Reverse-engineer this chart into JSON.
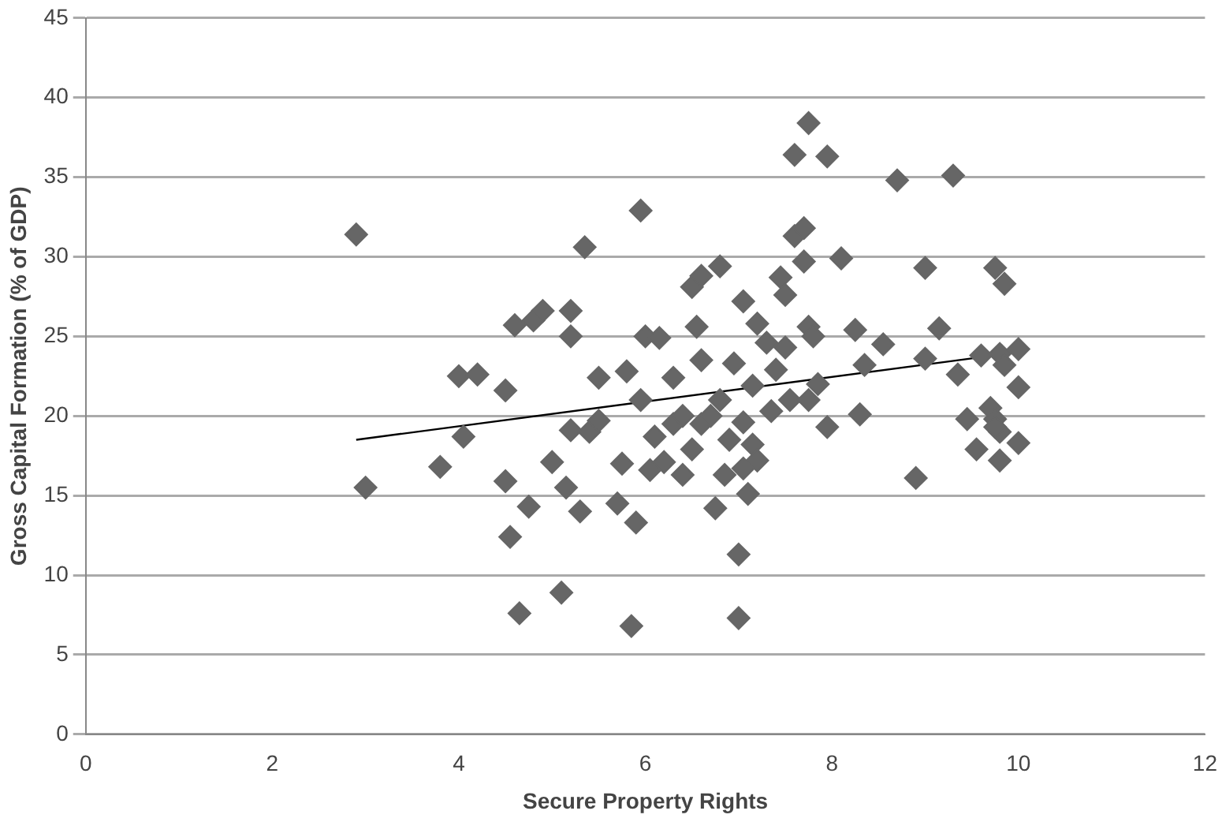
{
  "chart_data": {
    "type": "scatter",
    "xlabel": "Secure Property Rights",
    "ylabel": "Gross Capital Formation (% of GDP)",
    "xlim": [
      0,
      12
    ],
    "xticks": [
      0,
      2,
      4,
      6,
      8,
      10,
      12
    ],
    "ylim": [
      0,
      45
    ],
    "yticks": [
      0,
      5,
      10,
      15,
      20,
      25,
      30,
      35,
      40,
      45
    ],
    "grid": "y",
    "marker": "diamond",
    "series": [
      {
        "color": "#666666",
        "x": [
          2.9,
          3.0,
          3.8,
          4.0,
          4.05,
          4.2,
          4.5,
          4.5,
          4.55,
          4.6,
          4.65,
          4.75,
          4.8,
          4.9,
          5.0,
          5.1,
          5.15,
          5.2,
          5.2,
          5.2,
          5.3,
          5.35,
          5.4,
          5.5,
          5.5,
          5.7,
          5.75,
          5.8,
          5.85,
          5.9,
          5.95,
          5.95,
          6.0,
          6.05,
          6.1,
          6.15,
          6.2,
          6.3,
          6.3,
          6.4,
          6.4,
          6.5,
          6.5,
          6.55,
          6.6,
          6.6,
          6.6,
          6.7,
          6.75,
          6.8,
          6.8,
          6.85,
          6.9,
          6.95,
          7.0,
          7.0,
          7.05,
          7.05,
          7.05,
          7.1,
          7.15,
          7.15,
          7.2,
          7.2,
          7.3,
          7.35,
          7.4,
          7.45,
          7.5,
          7.5,
          7.55,
          7.6,
          7.6,
          7.7,
          7.7,
          7.75,
          7.75,
          7.75,
          7.8,
          7.85,
          7.95,
          7.95,
          8.1,
          8.25,
          8.3,
          8.35,
          8.55,
          8.7,
          8.9,
          9.0,
          9.0,
          9.15,
          9.3,
          9.35,
          9.45,
          9.55,
          9.6,
          9.7,
          9.75,
          9.8,
          9.8,
          9.8,
          9.85,
          9.85,
          10.0,
          10.0,
          10.0,
          9.75,
          9.75
        ],
        "values": [
          31.4,
          15.5,
          16.8,
          22.5,
          18.7,
          22.6,
          21.6,
          15.9,
          12.4,
          25.7,
          7.6,
          14.3,
          26.0,
          26.6,
          17.1,
          8.9,
          15.5,
          26.6,
          25.0,
          19.1,
          14.0,
          30.6,
          19.0,
          22.4,
          19.7,
          14.5,
          17.0,
          22.8,
          6.8,
          13.3,
          32.9,
          21.0,
          25.0,
          16.6,
          18.7,
          24.9,
          17.1,
          22.4,
          19.5,
          20.0,
          16.3,
          17.9,
          28.1,
          25.6,
          28.8,
          19.5,
          23.5,
          20.0,
          14.2,
          29.4,
          21.0,
          16.3,
          18.5,
          23.3,
          11.3,
          7.3,
          27.2,
          19.6,
          16.7,
          15.1,
          21.9,
          18.2,
          25.8,
          17.2,
          24.6,
          20.3,
          22.9,
          28.7,
          27.6,
          24.3,
          21.0,
          36.4,
          31.3,
          31.8,
          29.7,
          38.4,
          25.6,
          21.0,
          25.0,
          22.0,
          36.3,
          19.3,
          29.9,
          25.4,
          20.1,
          23.2,
          24.5,
          34.8,
          16.1,
          29.3,
          23.6,
          25.5,
          35.1,
          22.6,
          19.8,
          17.9,
          23.8,
          20.5,
          29.3,
          19.0,
          23.9,
          17.2,
          28.3,
          23.2,
          24.2,
          21.8,
          18.3,
          19.8,
          19.3
        ]
      },
      {
        "type": "line",
        "color": "#000000",
        "line_style": "solid",
        "marker": "none",
        "x": [
          2.9,
          10
        ],
        "values": [
          18.5,
          24.0
        ]
      }
    ]
  }
}
